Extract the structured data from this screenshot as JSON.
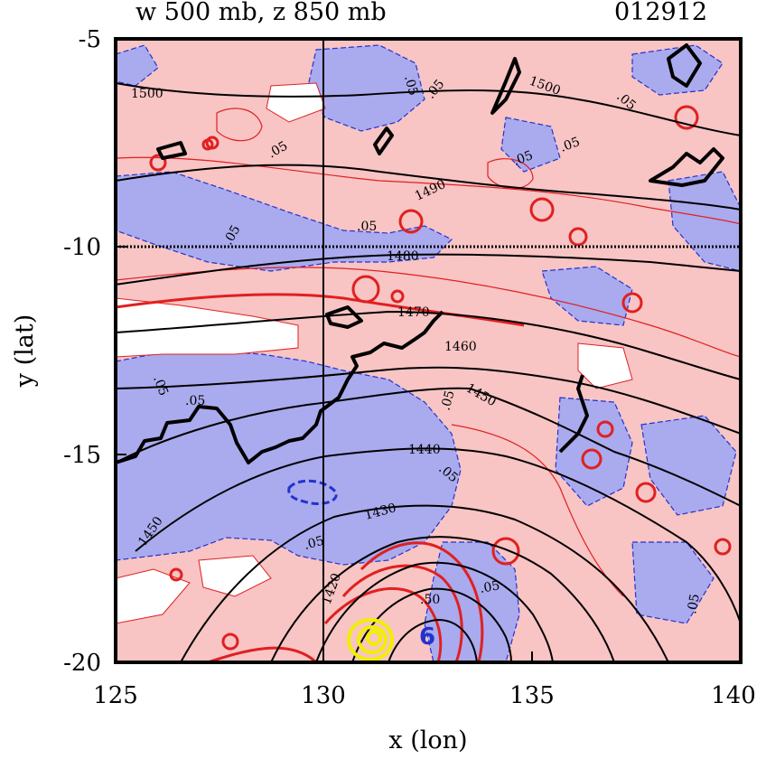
{
  "header": {
    "title_left": "w 500 mb, z 850 mb",
    "title_right": "012912"
  },
  "axes": {
    "x_label": "x (lon)",
    "y_label": "y (lat)",
    "x_range": [
      125,
      140
    ],
    "y_range": [
      -20,
      -5
    ],
    "x_ticks": [
      "125",
      "130",
      "135",
      "140"
    ],
    "y_ticks": [
      "-5",
      "-10",
      "-15",
      "-20"
    ]
  },
  "reference_lines": {
    "lon": 130,
    "lat": -10
  },
  "height_contours": {
    "variable": "z 850 mb",
    "labels": [
      "1500",
      "1500",
      "1490",
      "1480",
      "1470",
      "1460",
      "1450",
      "1450",
      "1440",
      "1430",
      "1420"
    ]
  },
  "vertical_velocity": {
    "variable": "w 500 mb",
    "labels": [
      ".05",
      ".05",
      ".05",
      ".05",
      ".05",
      ".05",
      ".05",
      ".05",
      ".05",
      ".05",
      ".05",
      ".05",
      ".05",
      ".05",
      ".05",
      ".50"
    ],
    "marker": "6"
  },
  "colors": {
    "positive_fill": "#f8c4c4",
    "negative_fill": "#aaaaee",
    "positive_line": "#e02020",
    "negative_line": "#2233cc",
    "height_line": "#000000",
    "max_core": "#f0f000"
  }
}
